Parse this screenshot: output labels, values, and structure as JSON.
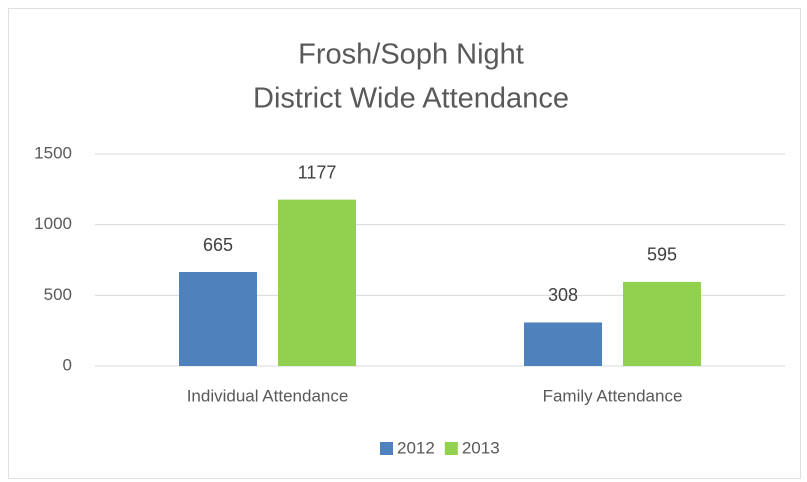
{
  "chart_data": {
    "type": "bar",
    "title": "Frosh/Soph Night",
    "subtitle": "District Wide Attendance",
    "categories": [
      "Individual Attendance",
      "Family Attendance"
    ],
    "series": [
      {
        "name": "2012",
        "color": "#4f81bd",
        "values": [
          665,
          308
        ]
      },
      {
        "name": "2013",
        "color": "#92d050",
        "values": [
          1177,
          595
        ]
      }
    ],
    "ylim": [
      0,
      1500
    ],
    "yticks": [
      0,
      500,
      1000,
      1500
    ],
    "grid": true,
    "legend": "bottom"
  }
}
